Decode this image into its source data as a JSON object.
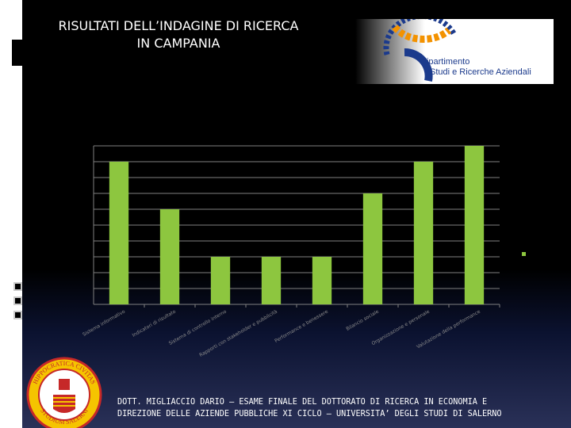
{
  "slide": {
    "title_line1": "RISULTATI DELL’INDAGINE DI RICERCA",
    "title_line2": "IN CAMPANIA",
    "logo": {
      "line1": "Dipartimento",
      "line2": "Studi e Ricerche Aziendali",
      "icon": "gear-logo",
      "accent_orange": "#f39200",
      "accent_blue": "#1b3a8c"
    },
    "footer_line1": "DOTT. MIGLIACCIO DARIO – ESAME FINALE DEL DOTTORATO DI RICERCA IN ECONOMIA E",
    "footer_line2": "DIREZIONE DELLE AZIENDE PUBBLICHE XI CICLO – UNIVERSITA’ DEGLI STUDI DI SALERNO",
    "seal": {
      "icon": "university-seal",
      "text_top": "HIPPOCRATICA CIVITAS",
      "text_bottom": "STUDIUM SALERNI"
    }
  },
  "chart_data": {
    "type": "bar",
    "categories": [
      "Sistema informativo",
      "Indicatori di risultato",
      "Sistema di controllo interno",
      "Rapporti con stakeholder e pubblicità",
      "Performance e benessere",
      "Bilancio sociale",
      "Organizzazione e personale",
      "Valutazione della performance"
    ],
    "values": [
      9,
      6,
      3,
      3,
      3,
      7,
      9,
      10
    ],
    "ylim": [
      0,
      10
    ],
    "grid": true,
    "bar_color": "#8dc63f",
    "axis_color": "#808080",
    "legend": "right"
  }
}
